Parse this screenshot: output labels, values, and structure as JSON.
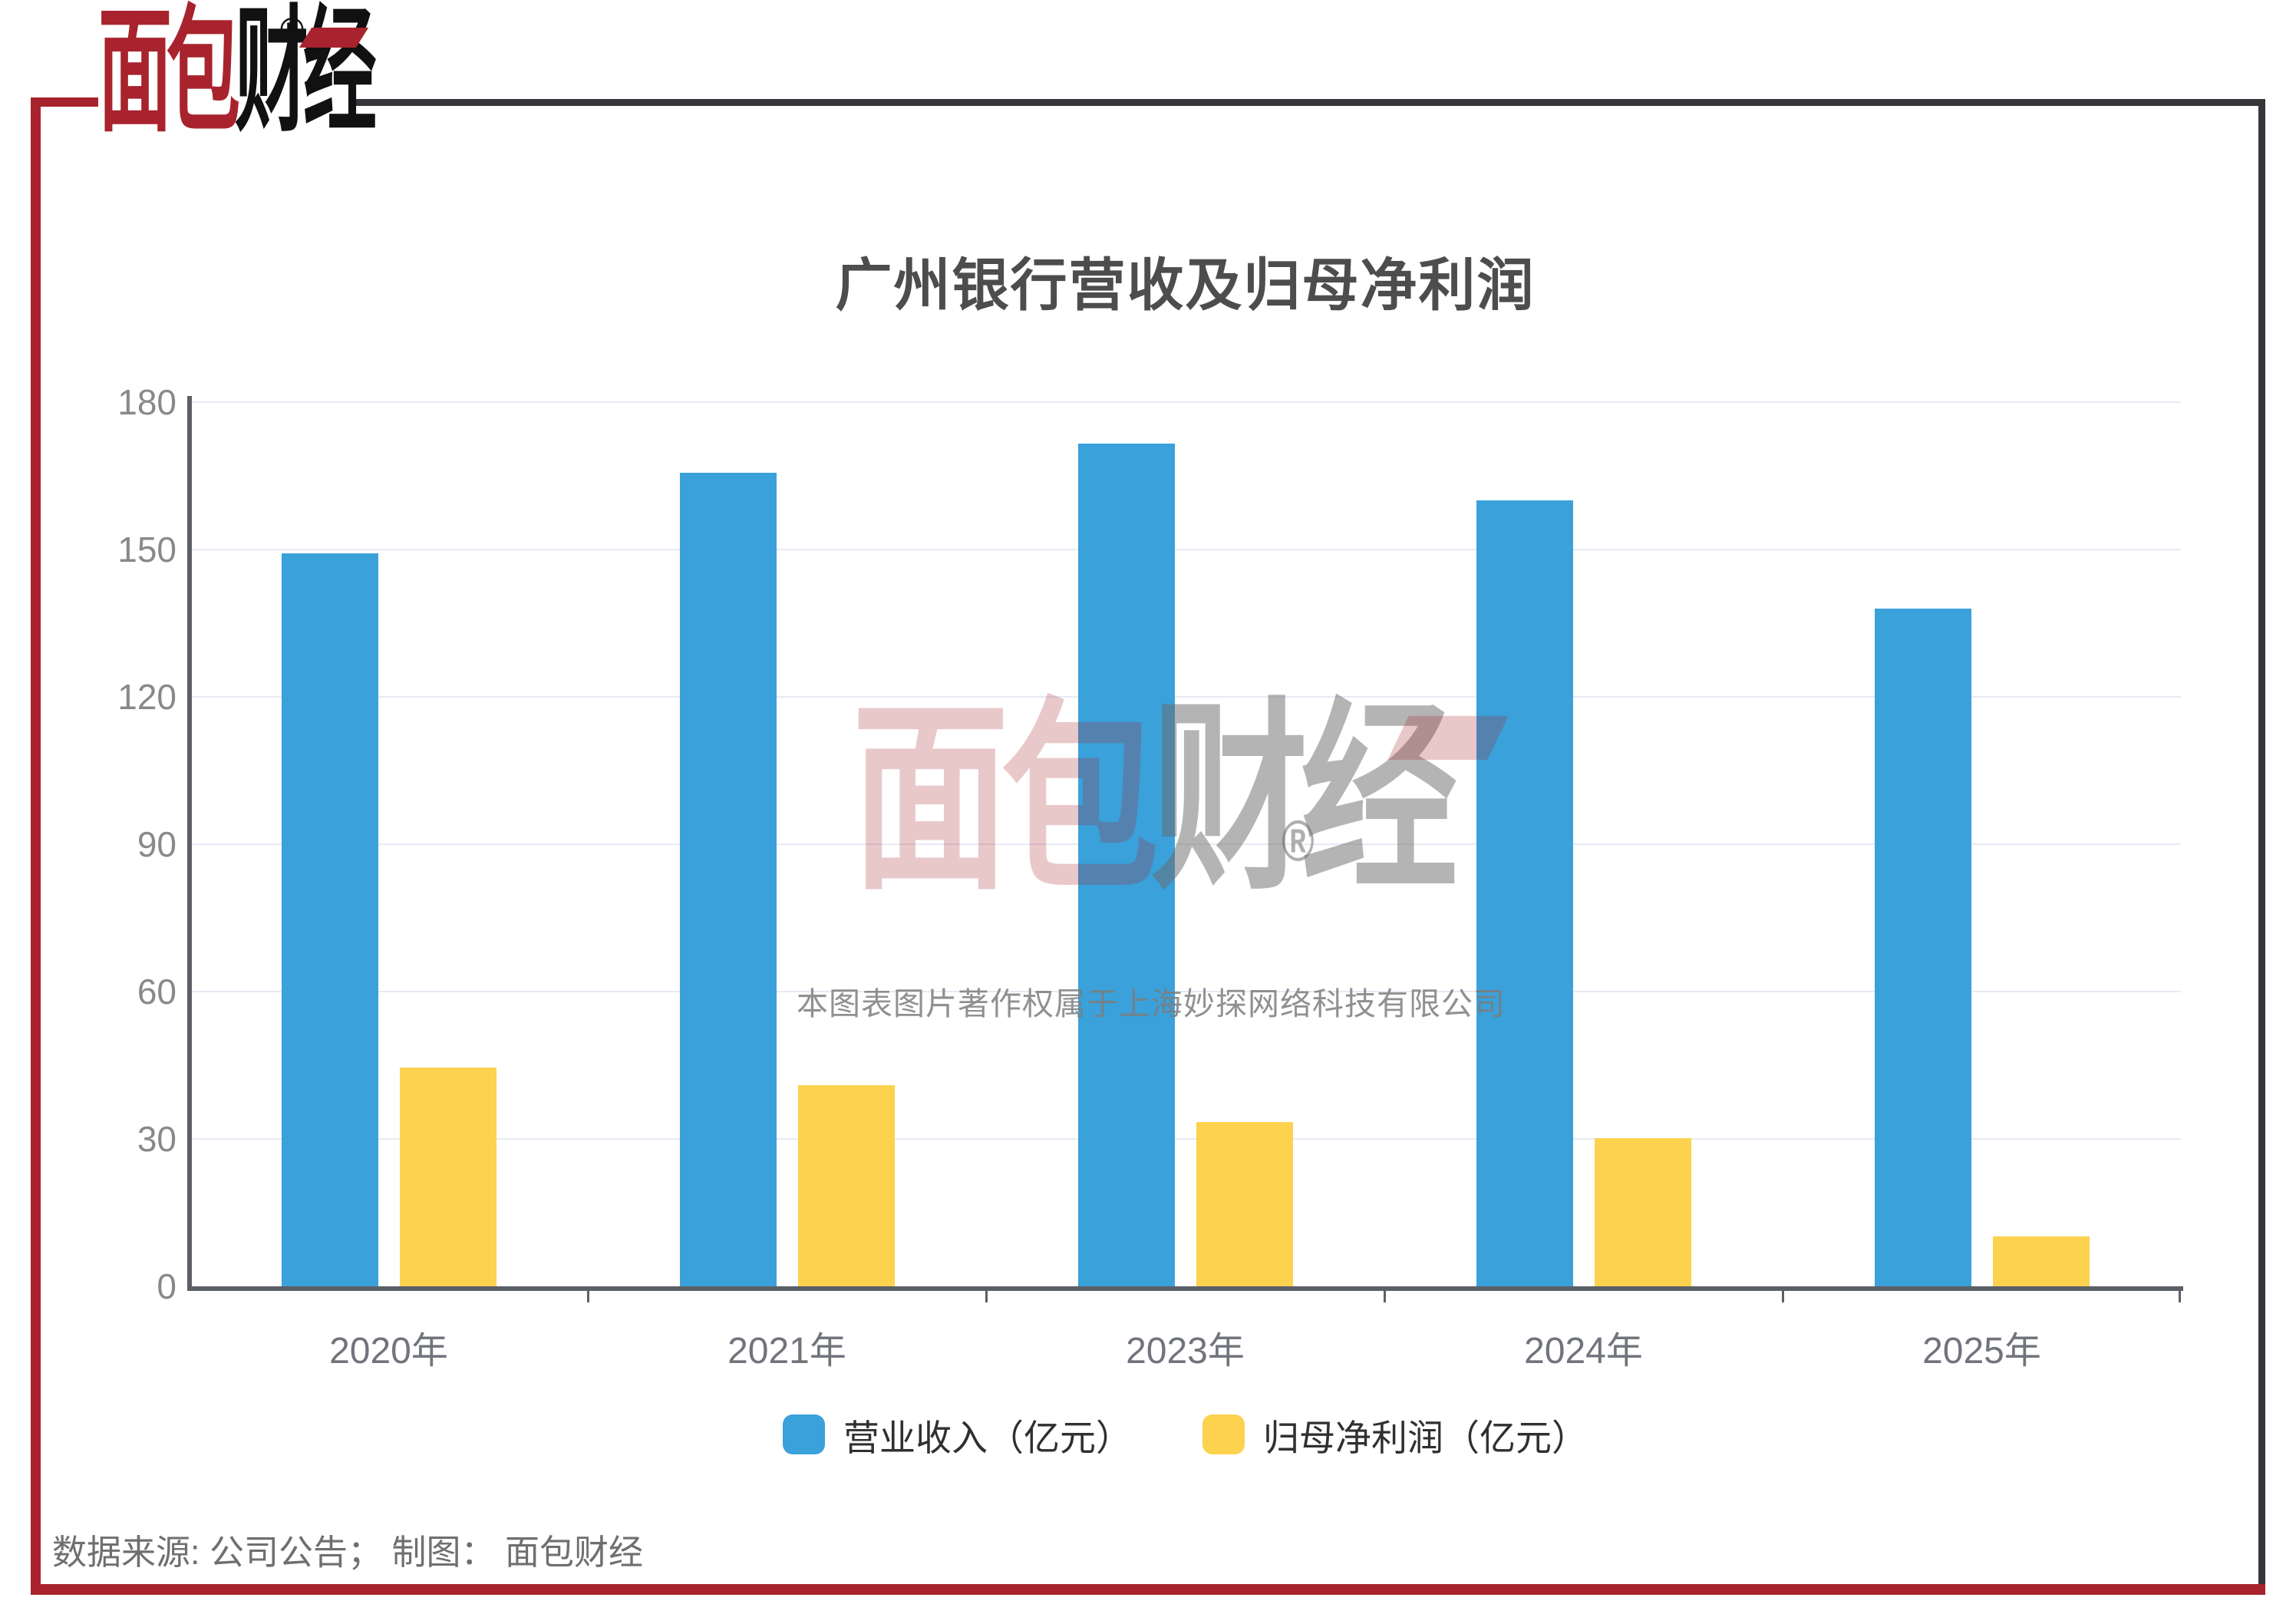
{
  "brand": {
    "logo_text_red": "面包",
    "logo_text_black": "财经",
    "registered_mark": "®"
  },
  "title": "广州银行营收及归母净利润",
  "watermark": {
    "logo_red": "面包",
    "logo_gray": "财经",
    "registered_mark": "®",
    "caption": "本图表图片著作权属于上海妙探网络科技有限公司"
  },
  "footer": {
    "text": "数据来源: 公司公告； 制图： 面包财经"
  },
  "colors": {
    "revenue_blue": "#3AA1DB",
    "profit_yellow": "#FCD24E",
    "brand_red": "#A8232D",
    "frame_dark": "#35363A",
    "gridline": "#E6EAF3",
    "axis_line": "#5B5F68",
    "title_text": "#4D4D4D",
    "y_label_text": "#898989",
    "x_label_text": "#71747C",
    "legend_text": "#303030",
    "footer_text": "#6F6F6F"
  },
  "legend": {
    "items": [
      {
        "label": "营业收入（亿元）",
        "color": "#3AA1DB"
      },
      {
        "label": "归母净利润（亿元）",
        "color": "#FCD24E"
      }
    ]
  },
  "chart_data": {
    "type": "bar",
    "title": "广州银行营收及归母净利润",
    "categories": [
      "2020年",
      "2021年",
      "2023年",
      "2024年",
      "2025年"
    ],
    "series": [
      {
        "name": "营业收入（亿元）",
        "color": "#3AA1DB",
        "values": [
          149.2,
          165.6,
          171.5,
          160.0,
          137.9
        ]
      },
      {
        "name": "归母净利润（亿元）",
        "color": "#FCD24E",
        "values": [
          44.6,
          41.0,
          33.4,
          30.2,
          10.1
        ]
      }
    ],
    "xlabel": "",
    "ylabel": "",
    "ylim": [
      0,
      180
    ],
    "yticks": [
      0,
      30,
      60,
      90,
      120,
      150,
      180
    ],
    "grid": true,
    "legend_position": "bottom"
  }
}
